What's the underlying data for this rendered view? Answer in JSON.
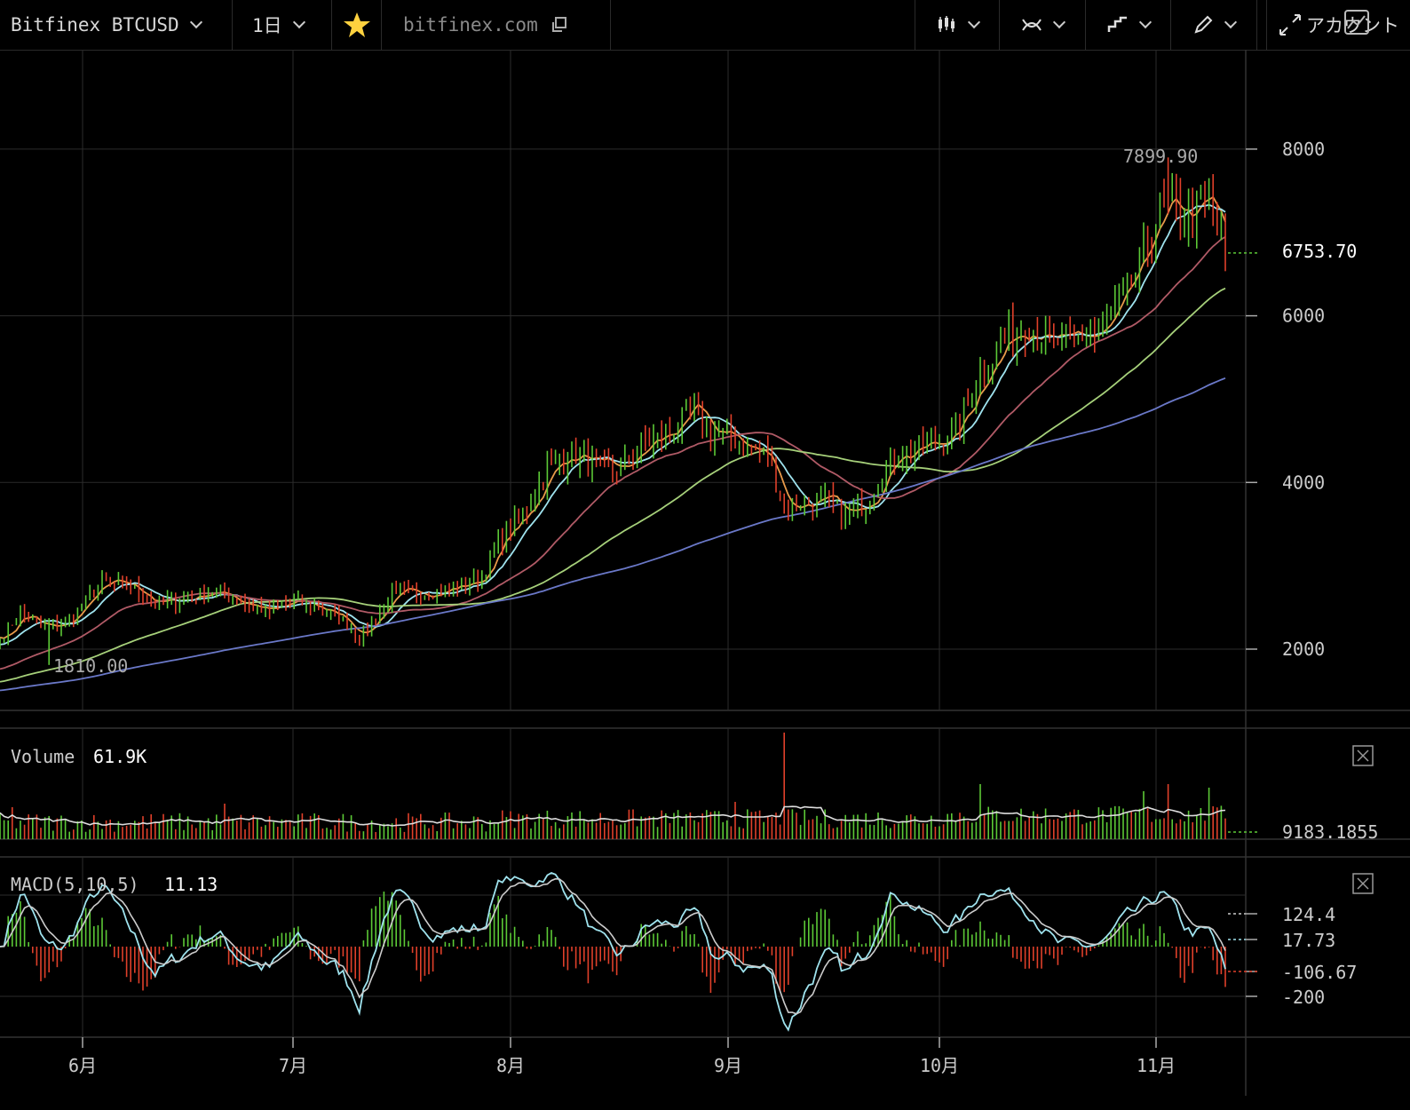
{
  "toolbar": {
    "symbol": "Bitfinex BTCUSD",
    "interval": "1日",
    "site": "bitfinex.com",
    "account": "アカウント",
    "icons": [
      "chevron-down-icon",
      "star-icon",
      "copy-icon",
      "candle-style-icon",
      "indicator-icon",
      "step-line-icon",
      "pencil-icon",
      "fullscreen-icon",
      "snapshot-icon"
    ]
  },
  "colors": {
    "up": "#5cc936",
    "down": "#e0402a",
    "ma5": "#e89a4a",
    "ma10": "#9fe3ee",
    "ma30": "#b05a66",
    "ma60": "#a6d07a",
    "ma120": "#6a78c8",
    "macd_line": "#9fe3ee",
    "signal_line": "#cccccc",
    "grid": "#2b2b2b"
  },
  "chart_data": [
    {
      "type": "candlestick",
      "title": "",
      "x_ticks": [
        "6月",
        "7月",
        "8月",
        "9月",
        "10月",
        "11月"
      ],
      "ylim": [
        1650,
        8500
      ],
      "y_ticks": [
        2000,
        4000,
        6000,
        8000
      ],
      "high_label": "7899.90",
      "low_label": "1810.00",
      "last_price": "6753.70",
      "grid": true,
      "anchors_close": [
        [
          0,
          2100
        ],
        [
          5,
          2450
        ],
        [
          10,
          2250
        ],
        [
          16,
          2300
        ],
        [
          25,
          2800
        ],
        [
          32,
          2750
        ],
        [
          38,
          2550
        ],
        [
          45,
          2600
        ],
        [
          52,
          2700
        ],
        [
          60,
          2550
        ],
        [
          66,
          2450
        ],
        [
          72,
          2580
        ],
        [
          78,
          2500
        ],
        [
          84,
          2350
        ],
        [
          88,
          2150
        ],
        [
          92,
          2400
        ],
        [
          96,
          2650
        ],
        [
          102,
          2680
        ],
        [
          108,
          2700
        ],
        [
          114,
          2780
        ],
        [
          118,
          2850
        ],
        [
          122,
          3300
        ],
        [
          128,
          3600
        ],
        [
          134,
          4150
        ],
        [
          140,
          4350
        ],
        [
          146,
          4200
        ],
        [
          152,
          4150
        ],
        [
          158,
          4450
        ],
        [
          164,
          4600
        ],
        [
          170,
          4900
        ],
        [
          174,
          4600
        ],
        [
          179,
          4550
        ],
        [
          184,
          4400
        ],
        [
          188,
          4300
        ],
        [
          192,
          3700
        ],
        [
          197,
          3750
        ],
        [
          202,
          3800
        ],
        [
          207,
          3600
        ],
        [
          212,
          3750
        ],
        [
          218,
          4300
        ],
        [
          224,
          4400
        ],
        [
          230,
          4480
        ],
        [
          235,
          4700
        ],
        [
          240,
          5300
        ],
        [
          246,
          5700
        ],
        [
          252,
          5900
        ],
        [
          258,
          5650
        ],
        [
          264,
          5750
        ],
        [
          270,
          5800
        ],
        [
          278,
          6500
        ],
        [
          284,
          7300
        ],
        [
          290,
          7200
        ],
        [
          296,
          7400
        ],
        [
          300,
          6753.7
        ]
      ],
      "volume": {
        "label": "Volume",
        "value": "61.9K",
        "right_label": "9183.1855",
        "spikes": [
          [
            192,
            120
          ],
          [
            180,
            42
          ],
          [
            240,
            62
          ],
          [
            280,
            54
          ],
          [
            286,
            62
          ],
          [
            296,
            58
          ],
          [
            3,
            36
          ],
          [
            55,
            40
          ]
        ]
      },
      "macd": {
        "label": "MACD(5,10,5)",
        "value": "11.13",
        "y_ticks": [
          "124.4",
          "17.73",
          "-106.67",
          "-200"
        ],
        "y_values": [
          124.4,
          17.73,
          -106.67,
          -200
        ]
      }
    }
  ]
}
